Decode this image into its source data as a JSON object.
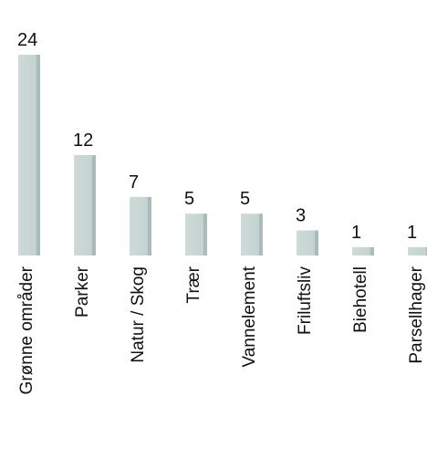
{
  "chart_data": {
    "type": "bar",
    "categories": [
      "Grønne områder",
      "Parker",
      "Natur / Skog",
      "Trær",
      "Vannelement",
      "Friluftsliv",
      "Biehotell",
      "Parsellhager"
    ],
    "values": [
      24,
      12,
      7,
      5,
      5,
      3,
      1,
      1
    ],
    "color": "#c9d7d5"
  }
}
